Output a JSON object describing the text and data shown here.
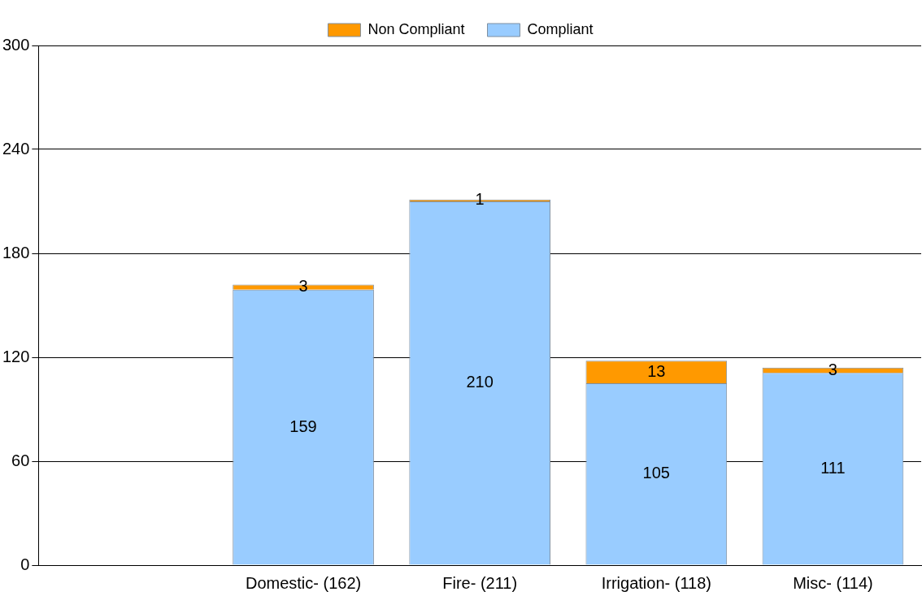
{
  "chart_data": {
    "type": "bar",
    "stacked": true,
    "categories": [
      null,
      "Domestic- (162)",
      "Fire- (211)",
      "Irrigation- (118)",
      "Misc- (114)"
    ],
    "series": [
      {
        "name": "Compliant",
        "color": "#99ccff",
        "values": [
          null,
          159,
          210,
          105,
          111
        ]
      },
      {
        "name": "Non Compliant",
        "color": "#ff9900",
        "values": [
          null,
          3,
          1,
          13,
          3
        ]
      }
    ],
    "ylim": [
      0,
      300
    ],
    "yticks": [
      0,
      60,
      120,
      180,
      240,
      300
    ],
    "grid": "y",
    "legend": "top",
    "data_labels": true
  }
}
